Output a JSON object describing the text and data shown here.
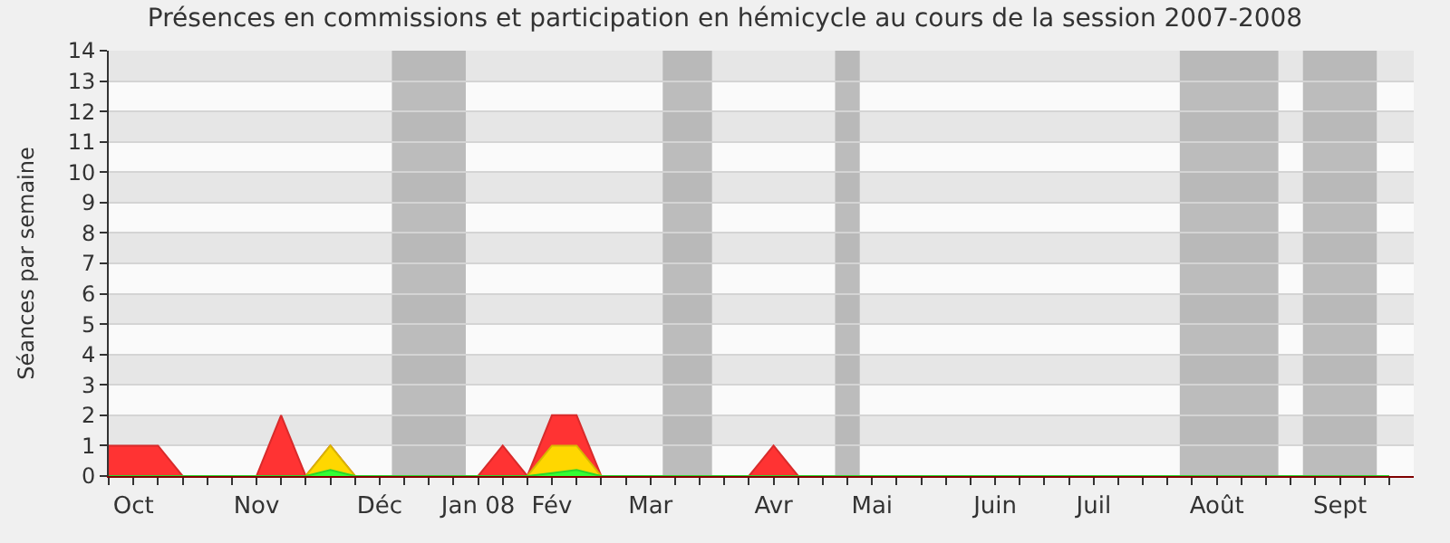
{
  "chart_data": {
    "type": "area",
    "title": "Présences en commissions et participation en hémicycle au cours de la session 2007-2008",
    "ylabel": "Séances par semaine",
    "x": [
      "2007-09-30",
      "2007-10-07",
      "2007-10-14",
      "2007-10-21",
      "2007-10-28",
      "2007-11-04",
      "2007-11-11",
      "2007-11-18",
      "2007-11-25",
      "2007-12-02",
      "2007-12-09",
      "2007-12-16",
      "2007-12-23",
      "2007-12-30",
      "2008-01-06",
      "2008-01-13",
      "2008-01-20",
      "2008-01-27",
      "2008-02-03",
      "2008-02-10",
      "2008-02-17",
      "2008-02-24",
      "2008-03-02",
      "2008-03-09",
      "2008-03-16",
      "2008-03-23",
      "2008-03-30",
      "2008-04-06",
      "2008-04-13",
      "2008-04-20",
      "2008-04-27",
      "2008-05-04",
      "2008-05-11",
      "2008-05-18",
      "2008-05-25",
      "2008-06-01",
      "2008-06-08",
      "2008-06-15",
      "2008-06-22",
      "2008-06-29",
      "2008-07-06",
      "2008-07-13",
      "2008-07-20",
      "2008-07-27",
      "2008-08-03",
      "2008-08-10",
      "2008-08-17",
      "2008-08-24",
      "2008-08-31",
      "2008-09-07",
      "2008-09-14",
      "2008-09-21",
      "2008-09-28"
    ],
    "series": [
      {
        "color": "#ff3333",
        "values": [
          1,
          1,
          1,
          0,
          0,
          0,
          0,
          2,
          0,
          1,
          0,
          0,
          0,
          0,
          0,
          0,
          1,
          0,
          2,
          2,
          0,
          0,
          0,
          0,
          0,
          0,
          0,
          1,
          0,
          0,
          0,
          0,
          0,
          0,
          0,
          0,
          0,
          0,
          0,
          0,
          0,
          0,
          0,
          0,
          0,
          0,
          0,
          0,
          0,
          0,
          0,
          0,
          0
        ]
      },
      {
        "color": "#ffd700",
        "values": [
          0,
          0,
          0,
          0,
          0,
          0,
          0,
          0,
          0,
          1,
          0,
          0,
          0,
          0,
          0,
          0,
          0,
          0,
          1,
          1,
          0,
          0,
          0,
          0,
          0,
          0,
          0,
          0,
          0,
          0,
          0,
          0,
          0,
          0,
          0,
          0,
          0,
          0,
          0,
          0,
          0,
          0,
          0,
          0,
          0,
          0,
          0,
          0,
          0,
          0,
          0,
          0,
          0
        ]
      },
      {
        "color": "#33ff33",
        "values": [
          0,
          0,
          0,
          0,
          0,
          0,
          0,
          0,
          0,
          0.2,
          0,
          0,
          0,
          0,
          0,
          0,
          0,
          0,
          0.1,
          0.2,
          0,
          0,
          0,
          0,
          0,
          0,
          0,
          0,
          0,
          0,
          0,
          0,
          0,
          0,
          0,
          0,
          0,
          0,
          0,
          0,
          0,
          0,
          0,
          0,
          0,
          0,
          0,
          0,
          0,
          0,
          0,
          0,
          0
        ]
      }
    ],
    "xlim": [
      "2007-09-30",
      "2008-10-05"
    ],
    "xticks": [
      {
        "value": "2007-09-30",
        "label": null
      },
      {
        "value": "2007-10-07",
        "label": "Oct"
      },
      {
        "value": "2007-10-14",
        "label": null
      },
      {
        "value": "2007-10-21",
        "label": null
      },
      {
        "value": "2007-10-28",
        "label": null
      },
      {
        "value": "2007-11-04",
        "label": null
      },
      {
        "value": "2007-11-11",
        "label": "Nov"
      },
      {
        "value": "2007-11-18",
        "label": null
      },
      {
        "value": "2007-11-25",
        "label": null
      },
      {
        "value": "2007-12-02",
        "label": null
      },
      {
        "value": "2007-12-09",
        "label": null
      },
      {
        "value": "2007-12-16",
        "label": "Déc"
      },
      {
        "value": "2007-12-23",
        "label": null
      },
      {
        "value": "2007-12-30",
        "label": null
      },
      {
        "value": "2008-01-06",
        "label": null
      },
      {
        "value": "2008-01-13",
        "label": "Jan 08"
      },
      {
        "value": "2008-01-20",
        "label": null
      },
      {
        "value": "2008-01-27",
        "label": null
      },
      {
        "value": "2008-02-03",
        "label": "Fév"
      },
      {
        "value": "2008-02-10",
        "label": null
      },
      {
        "value": "2008-02-17",
        "label": null
      },
      {
        "value": "2008-02-24",
        "label": null
      },
      {
        "value": "2008-03-02",
        "label": "Mar"
      },
      {
        "value": "2008-03-09",
        "label": null
      },
      {
        "value": "2008-03-16",
        "label": null
      },
      {
        "value": "2008-03-23",
        "label": null
      },
      {
        "value": "2008-03-30",
        "label": null
      },
      {
        "value": "2008-04-06",
        "label": "Avr"
      },
      {
        "value": "2008-04-13",
        "label": null
      },
      {
        "value": "2008-04-20",
        "label": null
      },
      {
        "value": "2008-04-27",
        "label": null
      },
      {
        "value": "2008-05-04",
        "label": "Mai"
      },
      {
        "value": "2008-05-11",
        "label": null
      },
      {
        "value": "2008-05-18",
        "label": null
      },
      {
        "value": "2008-05-25",
        "label": null
      },
      {
        "value": "2008-06-01",
        "label": null
      },
      {
        "value": "2008-06-08",
        "label": "Juin"
      },
      {
        "value": "2008-06-15",
        "label": null
      },
      {
        "value": "2008-06-22",
        "label": null
      },
      {
        "value": "2008-06-29",
        "label": null
      },
      {
        "value": "2008-07-06",
        "label": "Juil"
      },
      {
        "value": "2008-07-13",
        "label": null
      },
      {
        "value": "2008-07-20",
        "label": null
      },
      {
        "value": "2008-07-27",
        "label": null
      },
      {
        "value": "2008-08-03",
        "label": null
      },
      {
        "value": "2008-08-10",
        "label": "Août"
      },
      {
        "value": "2008-08-17",
        "label": null
      },
      {
        "value": "2008-08-24",
        "label": null
      },
      {
        "value": "2008-08-31",
        "label": null
      },
      {
        "value": "2008-09-07",
        "label": null
      },
      {
        "value": "2008-09-14",
        "label": "Sept"
      },
      {
        "value": "2008-09-21",
        "label": null
      },
      {
        "value": "2008-09-28",
        "label": null
      }
    ],
    "ylim": [
      0,
      14
    ],
    "yticks": [
      0,
      1,
      2,
      3,
      4,
      5,
      6,
      7,
      8,
      9,
      10,
      11,
      12,
      13,
      14
    ],
    "bands": [
      {
        "axis": "x",
        "from": "2007-12-19T12:00",
        "to": "2008-01-09T12:00",
        "color": "#b0b0b0"
      },
      {
        "axis": "x",
        "from": "2008-03-05T12:00",
        "to": "2008-03-19T12:00",
        "color": "#b0b0b0"
      },
      {
        "axis": "x",
        "from": "2008-04-23T12:00",
        "to": "2008-04-30T12:00",
        "color": "#b0b0b0"
      },
      {
        "axis": "x",
        "from": "2008-07-30T12:00",
        "to": "2008-08-27T12:00",
        "color": "#b0b0b0"
      },
      {
        "axis": "x",
        "from": "2008-09-03T12:00",
        "to": "2008-09-24T12:00",
        "color": "#b0b0b0"
      }
    ],
    "grid": "y",
    "marker": "none"
  }
}
